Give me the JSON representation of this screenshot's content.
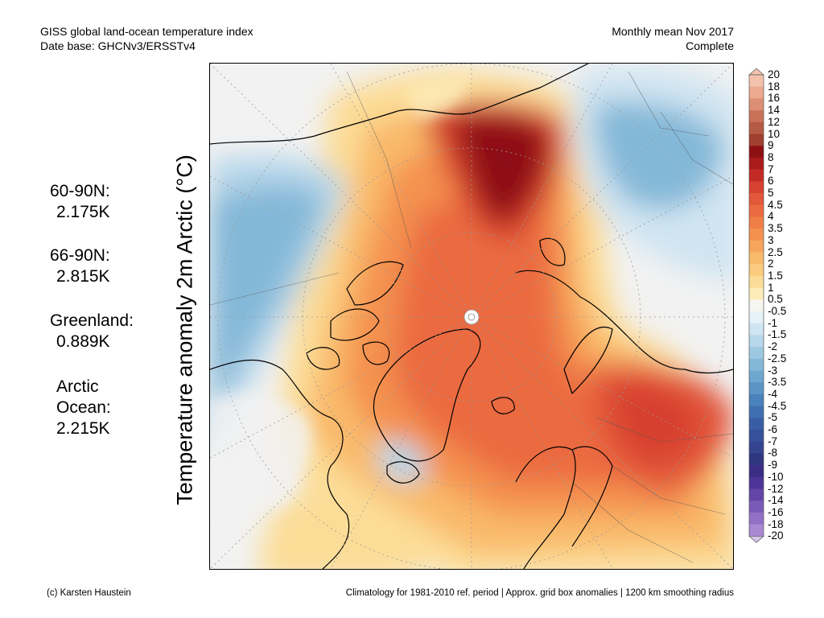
{
  "header": {
    "left_line1": "GISS global land-ocean temperature index",
    "left_line2": "Date base: GHCNv3/ERSSTv4",
    "right_line1": "Monthly mean Nov 2017",
    "right_line2": "Complete"
  },
  "stats": [
    {
      "label": "60-90N:",
      "value": "2.175K"
    },
    {
      "label": "66-90N:",
      "value": "2.815K"
    },
    {
      "label": "Greenland:",
      "value": "0.889K"
    },
    {
      "label": "Arctic",
      "label2": "Ocean:",
      "value": "2.215K"
    }
  ],
  "axis": {
    "ylabel": "Temperature anomaly 2m Arctic (°C)"
  },
  "colorbar": {
    "levels": [
      "20",
      "18",
      "16",
      "14",
      "12",
      "10",
      "9",
      "8",
      "7",
      "6",
      "5",
      "4.5",
      "4",
      "3.5",
      "3",
      "2.5",
      "2",
      "1.5",
      "1",
      "0.5",
      "-0.5",
      "-1",
      "-1.5",
      "-2",
      "-2.5",
      "-3",
      "-3.5",
      "-4",
      "-4.5",
      "-5",
      "-6",
      "-7",
      "-8",
      "-9",
      "-10",
      "-12",
      "-14",
      "-16",
      "-18",
      "-20"
    ],
    "colors": [
      "#f3c2ad",
      "#eba98f",
      "#dc8f74",
      "#c97259",
      "#b55a44",
      "#a0402f",
      "#8f1014",
      "#a91a1a",
      "#c42a25",
      "#d7412f",
      "#e3573a",
      "#eb6a40",
      "#f07e47",
      "#f4914f",
      "#f7a55c",
      "#f9b96b",
      "#fbcc7f",
      "#fcdd97",
      "#fdecb8",
      "#f7f5f0",
      "#e6f1f8",
      "#d0e5f2",
      "#b7d7ea",
      "#9dc8e1",
      "#84b8d8",
      "#6ea7cf",
      "#5a95c5",
      "#4a82bb",
      "#3f6fb0",
      "#3a5ea6",
      "#36509c",
      "#34448f",
      "#313681",
      "#3b2d86",
      "#4e3496",
      "#6345a8",
      "#7a5ab8",
      "#9170c6",
      "#a988d3",
      "#c0a3df"
    ],
    "top_arrow_color": "#f3c2ad",
    "bottom_arrow_color": "#d4c3ec"
  },
  "map": {
    "projection": "polar stereographic, North Pole centered",
    "region": "60-90N",
    "description_palette": {
      "warm_max": "#8f1014",
      "warm": "#e3573a",
      "neutral": "#f2f2f2",
      "cool": "#84b8d8"
    }
  },
  "footer": {
    "left": "(c) Karsten Haustein",
    "right": "Climatology for 1981-2010 ref. period | Approx. grid box anomalies | 1200 km smoothing radius"
  }
}
